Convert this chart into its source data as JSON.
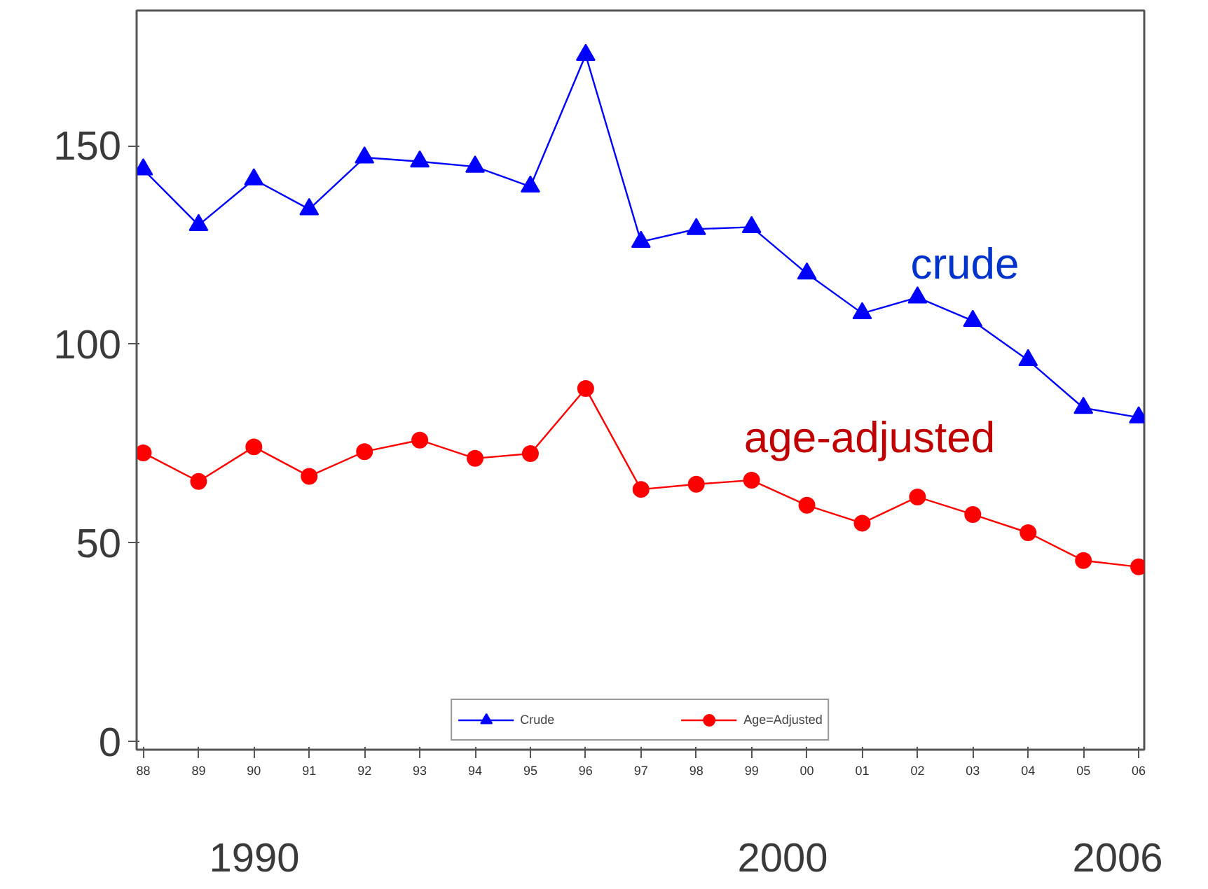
{
  "chart_data": {
    "type": "line",
    "x": [
      1988,
      1989,
      1990,
      1991,
      1992,
      1993,
      1994,
      1995,
      1996,
      1997,
      1998,
      1999,
      2000,
      2001,
      2002,
      2003,
      2004,
      2005,
      2006
    ],
    "series": [
      {
        "name": "Crude",
        "color": "#0000ff",
        "marker": "triangle",
        "values": [
          144,
          130,
          141.5,
          134,
          147,
          146,
          144.7,
          139.7,
          172.8,
          125.8,
          129,
          129.5,
          117.8,
          107.8,
          111.8,
          105.9,
          96,
          84,
          81.6
        ]
      },
      {
        "name": "Age=Adjusted",
        "color": "#ff0000",
        "marker": "circle",
        "values": [
          72.7,
          65.5,
          74.2,
          66.8,
          73,
          75.9,
          71.3,
          72.5,
          88.9,
          63.5,
          64.8,
          65.8,
          59.5,
          55,
          61.6,
          57.2,
          52.6,
          45.6,
          44
        ]
      }
    ],
    "xlim": [
      1987.88,
      2006.1
    ],
    "xticks": [
      {
        "value": 1988,
        "label": "88"
      },
      {
        "value": 1989,
        "label": "89"
      },
      {
        "value": 1990,
        "label": "90"
      },
      {
        "value": 1991,
        "label": "91"
      },
      {
        "value": 1992,
        "label": "92"
      },
      {
        "value": 1993,
        "label": "93"
      },
      {
        "value": 1994,
        "label": "94"
      },
      {
        "value": 1995,
        "label": "95"
      },
      {
        "value": 1996,
        "label": "96"
      },
      {
        "value": 1997,
        "label": "97"
      },
      {
        "value": 1998,
        "label": "98"
      },
      {
        "value": 1999,
        "label": "99"
      },
      {
        "value": 2000,
        "label": "00"
      },
      {
        "value": 2001,
        "label": "01"
      },
      {
        "value": 2002,
        "label": "02"
      },
      {
        "value": 2003,
        "label": "03"
      },
      {
        "value": 2004,
        "label": "04"
      },
      {
        "value": 2005,
        "label": "05"
      },
      {
        "value": 2006,
        "label": "06"
      }
    ],
    "ylim": [
      -2,
      184
    ],
    "yticks": [
      0,
      50,
      100,
      150
    ],
    "annotations": [
      "crude",
      "age-adjusted",
      "1990",
      "2000",
      "2006"
    ],
    "grid": false,
    "legend": "bottom",
    "line_style": "solid"
  }
}
